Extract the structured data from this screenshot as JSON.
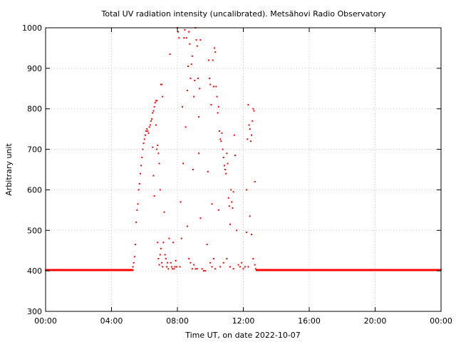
{
  "chart_data": {
    "type": "scatter",
    "title": "Total UV radiation intensity (uncalibrated). Metsähovi Radio Observatory",
    "xlabel": "Time UT, on date 2022-10-07",
    "ylabel": "Arbitrary unit",
    "xlim": [
      0,
      24
    ],
    "ylim": [
      300,
      1000
    ],
    "x_ticks": [
      0,
      4,
      8,
      12,
      16,
      20,
      24
    ],
    "x_tick_labels": [
      "00:00",
      "04:00",
      "08:00",
      "12:00",
      "16:00",
      "20:00",
      "00:00"
    ],
    "y_ticks": [
      300,
      400,
      500,
      600,
      700,
      800,
      900,
      1000
    ],
    "y_tick_labels": [
      "300",
      "400",
      "500",
      "600",
      "700",
      "800",
      "900",
      "1000"
    ],
    "grid": true,
    "marker_color": "#ff0000",
    "series": [
      {
        "baseline": 402,
        "baseline_intervals": [
          [
            0.0,
            5.3
          ],
          [
            12.8,
            24.0
          ]
        ],
        "points": [
          [
            5.3,
            410
          ],
          [
            5.35,
            420
          ],
          [
            5.4,
            435
          ],
          [
            5.45,
            465
          ],
          [
            5.5,
            520
          ],
          [
            5.55,
            550
          ],
          [
            5.6,
            565
          ],
          [
            5.65,
            600
          ],
          [
            5.7,
            615
          ],
          [
            5.75,
            640
          ],
          [
            5.8,
            660
          ],
          [
            5.85,
            680
          ],
          [
            5.9,
            700
          ],
          [
            5.95,
            715
          ],
          [
            6.0,
            725
          ],
          [
            6.05,
            735
          ],
          [
            6.1,
            745
          ],
          [
            6.15,
            750
          ],
          [
            6.2,
            745
          ],
          [
            6.25,
            740
          ],
          [
            6.3,
            755
          ],
          [
            6.35,
            760
          ],
          [
            6.4,
            770
          ],
          [
            6.45,
            775
          ],
          [
            6.5,
            790
          ],
          [
            6.55,
            795
          ],
          [
            6.6,
            805
          ],
          [
            6.65,
            815
          ],
          [
            6.7,
            820
          ],
          [
            6.75,
            820
          ],
          [
            6.5,
            705
          ],
          [
            6.55,
            635
          ],
          [
            6.6,
            585
          ],
          [
            6.7,
            760
          ],
          [
            6.75,
            700
          ],
          [
            6.8,
            710
          ],
          [
            6.85,
            690
          ],
          [
            6.9,
            665
          ],
          [
            6.95,
            600
          ],
          [
            7.0,
            860
          ],
          [
            7.05,
            860
          ],
          [
            7.1,
            830
          ],
          [
            6.8,
            470
          ],
          [
            6.85,
            430
          ],
          [
            6.9,
            415
          ],
          [
            6.95,
            440
          ],
          [
            7.0,
            455
          ],
          [
            7.05,
            420
          ],
          [
            7.1,
            410
          ],
          [
            7.15,
            470
          ],
          [
            7.2,
            545
          ],
          [
            7.25,
            440
          ],
          [
            7.3,
            430
          ],
          [
            7.35,
            410
          ],
          [
            7.4,
            420
          ],
          [
            7.45,
            405
          ],
          [
            7.5,
            480
          ],
          [
            7.55,
            935
          ],
          [
            7.6,
            420
          ],
          [
            7.65,
            410
          ],
          [
            7.7,
            405
          ],
          [
            7.75,
            470
          ],
          [
            7.8,
            405
          ],
          [
            7.85,
            410
          ],
          [
            7.9,
            425
          ],
          [
            7.95,
            410
          ],
          [
            8.0,
            1000
          ],
          [
            8.05,
            990
          ],
          [
            8.1,
            975
          ],
          [
            8.15,
            410
          ],
          [
            8.2,
            570
          ],
          [
            8.25,
            480
          ],
          [
            8.3,
            805
          ],
          [
            8.35,
            665
          ],
          [
            8.4,
            975
          ],
          [
            8.45,
            995
          ],
          [
            8.5,
            755
          ],
          [
            8.55,
            975
          ],
          [
            8.6,
            845
          ],
          [
            8.65,
            905
          ],
          [
            8.7,
            990
          ],
          [
            8.75,
            960
          ],
          [
            8.8,
            875
          ],
          [
            8.85,
            910
          ],
          [
            8.9,
            930
          ],
          [
            8.95,
            650
          ],
          [
            9.0,
            830
          ],
          [
            9.05,
            870
          ],
          [
            9.1,
            1000
          ],
          [
            9.15,
            970
          ],
          [
            9.2,
            955
          ],
          [
            9.25,
            875
          ],
          [
            9.3,
            780
          ],
          [
            9.35,
            850
          ],
          [
            9.4,
            970
          ],
          [
            8.6,
            510
          ],
          [
            8.7,
            430
          ],
          [
            8.8,
            420
          ],
          [
            8.9,
            405
          ],
          [
            9.0,
            415
          ],
          [
            9.1,
            405
          ],
          [
            9.2,
            405
          ],
          [
            9.3,
            690
          ],
          [
            9.4,
            530
          ],
          [
            9.5,
            405
          ],
          [
            9.6,
            400
          ],
          [
            9.7,
            400
          ],
          [
            9.8,
            465
          ],
          [
            9.85,
            645
          ],
          [
            9.9,
            920
          ],
          [
            9.95,
            875
          ],
          [
            10.0,
            860
          ],
          [
            10.05,
            810
          ],
          [
            10.1,
            565
          ],
          [
            10.15,
            920
          ],
          [
            10.2,
            855
          ],
          [
            10.25,
            950
          ],
          [
            10.3,
            940
          ],
          [
            10.35,
            855
          ],
          [
            10.4,
            830
          ],
          [
            10.45,
            790
          ],
          [
            10.5,
            805
          ],
          [
            10.55,
            745
          ],
          [
            10.6,
            725
          ],
          [
            10.65,
            720
          ],
          [
            10.7,
            740
          ],
          [
            10.75,
            700
          ],
          [
            10.8,
            680
          ],
          [
            10.85,
            660
          ],
          [
            10.9,
            650
          ],
          [
            10.95,
            640
          ],
          [
            11.0,
            690
          ],
          [
            11.05,
            665
          ],
          [
            11.1,
            580
          ],
          [
            11.15,
            560
          ],
          [
            11.2,
            515
          ],
          [
            11.25,
            600
          ],
          [
            11.3,
            570
          ],
          [
            11.35,
            555
          ],
          [
            11.4,
            595
          ],
          [
            11.45,
            735
          ],
          [
            11.5,
            685
          ],
          [
            10.0,
            420
          ],
          [
            10.1,
            410
          ],
          [
            10.2,
            430
          ],
          [
            10.3,
            405
          ],
          [
            10.5,
            550
          ],
          [
            10.6,
            410
          ],
          [
            10.8,
            420
          ],
          [
            11.0,
            430
          ],
          [
            11.2,
            410
          ],
          [
            11.4,
            405
          ],
          [
            11.6,
            500
          ],
          [
            11.7,
            415
          ],
          [
            11.8,
            410
          ],
          [
            11.9,
            420
          ],
          [
            12.0,
            405
          ],
          [
            12.1,
            410
          ],
          [
            12.2,
            600
          ],
          [
            12.25,
            725
          ],
          [
            12.3,
            810
          ],
          [
            12.35,
            760
          ],
          [
            12.4,
            750
          ],
          [
            12.45,
            720
          ],
          [
            12.5,
            735
          ],
          [
            12.55,
            770
          ],
          [
            12.6,
            800
          ],
          [
            12.65,
            795
          ],
          [
            12.7,
            620
          ],
          [
            12.4,
            535
          ],
          [
            12.5,
            490
          ],
          [
            12.2,
            495
          ],
          [
            12.3,
            410
          ],
          [
            12.6,
            430
          ],
          [
            12.7,
            415
          ],
          [
            12.75,
            405
          ]
        ]
      }
    ]
  }
}
